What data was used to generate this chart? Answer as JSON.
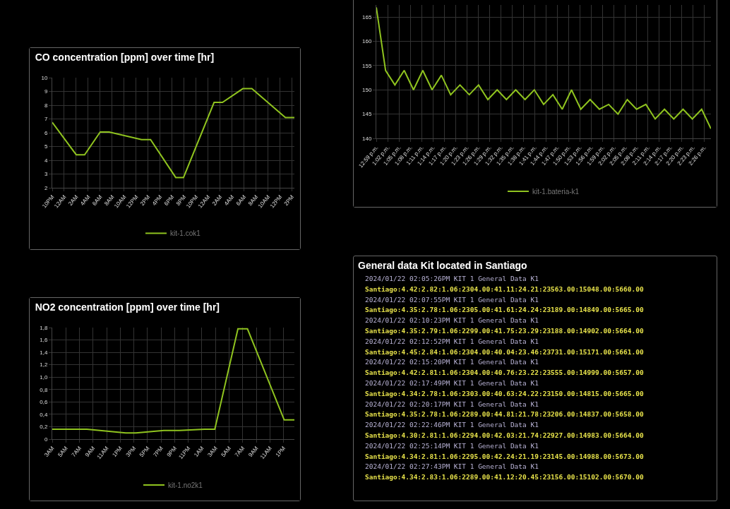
{
  "chart_data": [
    {
      "type": "line",
      "title": "CO concentration [ppm] over time [hr]",
      "x": [
        "2024-01-20T22:00",
        "2024-01-21T02:00",
        "2024-01-21T03:24",
        "2024-01-21T06:00",
        "2024-01-21T07:30",
        "2024-01-21T12:54",
        "2024-01-21T14:24",
        "2024-01-21T18:36",
        "2024-01-21T19:54",
        "2024-01-22T01:00",
        "2024-01-22T02:24",
        "2024-01-22T05:48",
        "2024-01-22T07:18",
        "2024-01-22T12:54",
        "2024-01-22T14:24"
      ],
      "series": [
        {
          "name": "kit-1.cok1",
          "color": "#8fc31f",
          "values": [
            6.75,
            4.4,
            4.4,
            6.05,
            6.05,
            5.5,
            5.5,
            2.75,
            2.75,
            8.2,
            8.2,
            9.2,
            9.2,
            7.1,
            7.1
          ]
        }
      ],
      "xlim": [
        "2024-01-20T22:00",
        "2024-01-22T14:24"
      ],
      "xticks": [
        {
          "value": "2024-01-20T22:00",
          "label": "10PM"
        },
        {
          "value": "2024-01-21T00:00",
          "label": "12AM"
        },
        {
          "value": "2024-01-21T02:00",
          "label": "2AM"
        },
        {
          "value": "2024-01-21T04:00",
          "label": "4AM"
        },
        {
          "value": "2024-01-21T06:00",
          "label": "6AM"
        },
        {
          "value": "2024-01-21T08:00",
          "label": "8AM"
        },
        {
          "value": "2024-01-21T10:00",
          "label": "10AM"
        },
        {
          "value": "2024-01-21T12:00",
          "label": "12PM"
        },
        {
          "value": "2024-01-21T14:00",
          "label": "2PM"
        },
        {
          "value": "2024-01-21T16:00",
          "label": "4PM"
        },
        {
          "value": "2024-01-21T18:00",
          "label": "6PM"
        },
        {
          "value": "2024-01-21T20:00",
          "label": "8PM"
        },
        {
          "value": "2024-01-21T22:00",
          "label": "10PM"
        },
        {
          "value": "2024-01-22T00:00",
          "label": "12AM"
        },
        {
          "value": "2024-01-22T02:00",
          "label": "2AM"
        },
        {
          "value": "2024-01-22T04:00",
          "label": "4AM"
        },
        {
          "value": "2024-01-22T06:00",
          "label": "6AM"
        },
        {
          "value": "2024-01-22T08:00",
          "label": "8AM"
        },
        {
          "value": "2024-01-22T10:00",
          "label": "10AM"
        },
        {
          "value": "2024-01-22T12:00",
          "label": "12PM"
        },
        {
          "value": "2024-01-22T14:00",
          "label": "2PM"
        }
      ],
      "ylim": [
        2,
        10
      ],
      "yticks": [
        2,
        3,
        4,
        5,
        6,
        7,
        8,
        9,
        10
      ],
      "grid": true,
      "legend": "bottom",
      "marker": "none"
    },
    {
      "type": "line",
      "x": [
        12.9833,
        13.0244,
        13.0656,
        13.1067,
        13.1478,
        13.1889,
        13.23,
        13.2711,
        13.3122,
        13.3533,
        13.3944,
        13.4356,
        13.4767,
        13.5178,
        13.5589,
        13.6,
        13.6411,
        13.6822,
        13.7233,
        13.7644,
        13.8056,
        13.8467,
        13.8878,
        13.9289,
        13.97,
        14.0111,
        14.0522,
        14.0933,
        14.1344,
        14.1756,
        14.2167,
        14.2578,
        14.2989,
        14.34,
        14.3811,
        14.4222,
        14.4633
      ],
      "series": [
        {
          "name": "kit-1.bateria-k1",
          "color": "#8fc31f",
          "values": [
            167,
            154,
            151,
            154,
            150,
            154,
            150,
            153,
            149,
            151,
            149,
            151,
            148,
            150,
            148,
            150,
            148,
            150,
            147,
            149,
            146,
            150,
            146,
            148,
            146,
            147,
            145,
            148,
            146,
            147,
            144,
            146,
            144,
            146,
            144,
            146,
            142
          ]
        }
      ],
      "xlim": [
        12.9833,
        14.4633
      ],
      "xticks": [
        {
          "value": 12.9833,
          "label": "12:59 p.m."
        },
        {
          "value": 13.0333,
          "label": "1:02 p.m."
        },
        {
          "value": 13.0833,
          "label": "1:05 p.m."
        },
        {
          "value": 13.1333,
          "label": "1:08 p.m."
        },
        {
          "value": 13.1833,
          "label": "1:11 p.m."
        },
        {
          "value": 13.2333,
          "label": "1:14 p.m."
        },
        {
          "value": 13.2833,
          "label": "1:17 p.m."
        },
        {
          "value": 13.3333,
          "label": "1:20 p.m."
        },
        {
          "value": 13.3833,
          "label": "1:23 p.m."
        },
        {
          "value": 13.4333,
          "label": "1:26 p.m."
        },
        {
          "value": 13.4833,
          "label": "1:29 p.m."
        },
        {
          "value": 13.5333,
          "label": "1:32 p.m."
        },
        {
          "value": 13.5833,
          "label": "1:35 p.m."
        },
        {
          "value": 13.6333,
          "label": "1:38 p.m."
        },
        {
          "value": 13.6833,
          "label": "1:41 p.m."
        },
        {
          "value": 13.7333,
          "label": "1:44 p.m."
        },
        {
          "value": 13.7833,
          "label": "1:47 p.m."
        },
        {
          "value": 13.8333,
          "label": "1:50 p.m."
        },
        {
          "value": 13.8833,
          "label": "1:53 p.m."
        },
        {
          "value": 13.9333,
          "label": "1:56 p.m."
        },
        {
          "value": 13.9833,
          "label": "1:59 p.m."
        },
        {
          "value": 14.0333,
          "label": "2:02 p.m."
        },
        {
          "value": 14.0833,
          "label": "2:05 p.m."
        },
        {
          "value": 14.1333,
          "label": "2:08 p.m."
        },
        {
          "value": 14.1833,
          "label": "2:11 p.m."
        },
        {
          "value": 14.2333,
          "label": "2:14 p.m."
        },
        {
          "value": 14.2833,
          "label": "2:17 p.m."
        },
        {
          "value": 14.3333,
          "label": "2:20 p.m."
        },
        {
          "value": 14.3833,
          "label": "2:23 p.m."
        },
        {
          "value": 14.4333,
          "label": "2:26 p.m."
        }
      ],
      "ylim": [
        140,
        167.5
      ],
      "yticks": [
        140,
        145,
        150,
        155,
        160,
        165
      ],
      "grid": true,
      "legend": "bottom",
      "marker": "none"
    },
    {
      "type": "line",
      "title": "NO2 concentration [ppm] over time [hr]",
      "x": [
        "2024-01-21T03:00",
        "2024-01-21T08:06",
        "2024-01-21T13:48",
        "2024-01-21T15:18",
        "2024-01-21T19:24",
        "2024-01-21T21:42",
        "2024-01-22T01:24",
        "2024-01-22T02:54",
        "2024-01-22T06:18",
        "2024-01-22T07:42",
        "2024-01-22T13:06",
        "2024-01-22T14:36"
      ],
      "series": [
        {
          "name": "kit-1.no2k1",
          "color": "#8fc31f",
          "values": [
            0.16,
            0.16,
            0.1,
            0.1,
            0.14,
            0.14,
            0.16,
            0.16,
            1.78,
            1.78,
            0.31,
            0.31
          ]
        }
      ],
      "xlim": [
        "2024-01-21T03:00",
        "2024-01-22T14:36"
      ],
      "xticks": [
        {
          "value": "2024-01-21T03:00",
          "label": "3AM"
        },
        {
          "value": "2024-01-21T05:00",
          "label": "5AM"
        },
        {
          "value": "2024-01-21T07:00",
          "label": "7AM"
        },
        {
          "value": "2024-01-21T09:00",
          "label": "9AM"
        },
        {
          "value": "2024-01-21T11:00",
          "label": "11AM"
        },
        {
          "value": "2024-01-21T13:00",
          "label": "1PM"
        },
        {
          "value": "2024-01-21T15:00",
          "label": "3PM"
        },
        {
          "value": "2024-01-21T17:00",
          "label": "5PM"
        },
        {
          "value": "2024-01-21T19:00",
          "label": "7PM"
        },
        {
          "value": "2024-01-21T21:00",
          "label": "9PM"
        },
        {
          "value": "2024-01-21T23:00",
          "label": "11PM"
        },
        {
          "value": "2024-01-22T01:00",
          "label": "1AM"
        },
        {
          "value": "2024-01-22T03:00",
          "label": "3AM"
        },
        {
          "value": "2024-01-22T05:00",
          "label": "5AM"
        },
        {
          "value": "2024-01-22T07:00",
          "label": "7AM"
        },
        {
          "value": "2024-01-22T09:00",
          "label": "9AM"
        },
        {
          "value": "2024-01-22T11:00",
          "label": "11AM"
        },
        {
          "value": "2024-01-22T13:00",
          "label": "1PM"
        }
      ],
      "ylim": [
        0,
        1.8
      ],
      "yticks": [
        0,
        {
          "value": 0.2,
          "label": "0,2"
        },
        {
          "value": 0.4,
          "label": "0,4"
        },
        {
          "value": 0.6,
          "label": "0,6"
        },
        {
          "value": 0.8,
          "label": "0,8"
        },
        {
          "value": 1,
          "label": "1,0"
        },
        {
          "value": 1.2,
          "label": "1,2"
        },
        {
          "value": 1.4,
          "label": "1,4"
        },
        {
          "value": 1.6,
          "label": "1,6"
        },
        {
          "value": 1.8,
          "label": "1,8"
        }
      ],
      "grid": true,
      "legend": "bottom",
      "marker": "none"
    },
    {
      "type": "other",
      "title": "General data Kit located in Santiago",
      "annotations": [
        "2024/01/22 02:05:26PM  KIT 1  General Data K1",
        "Santiago:4.42:2.82:1.06:2304.00:41.11:24.21:23563.00:15048.00:5660.00",
        "2024/01/22 02:07:55PM  KIT 1  General Data K1",
        "Santiago:4.35:2.78:1.06:2305.00:41.61:24.24:23189.00:14849.00:5665.00",
        "2024/01/22 02:10:23PM  KIT 1  General Data K1",
        "Santiago:4.35:2.79:1.06:2299.00:41.75:23.29:23188.00:14902.00:5664.00",
        "2024/01/22 02:12:52PM  KIT 1  General Data K1",
        "Santiago:4.45:2.84:1.06:2304.00:40.04:23.46:23731.00:15171.00:5661.00",
        "2024/01/22 02:15:20PM  KIT 1  General Data K1",
        "Santiago:4.42:2.81:1.06:2304.00:40.76:23.22:23555.00:14999.00:5657.00",
        "2024/01/22 02:17:49PM  KIT 1  General Data K1",
        "Santiago:4.34:2.78:1.06:2303.00:40.63:24.22:23150.00:14815.00:5665.00",
        "2024/01/22 02:20:17PM  KIT 1  General Data K1",
        "Santiago:4.35:2.78:1.06:2289.00:44.81:21.78:23206.00:14837.00:5658.00",
        "2024/01/22 02:22:46PM  KIT 1  General Data K1",
        "Santiago:4.30:2.81:1.06:2294.00:42.03:21.74:22927.00:14983.00:5664.00",
        "2024/01/22 02:25:14PM  KIT 1  General Data K1",
        "Santiago:4.34:2.81:1.06:2295.00:42.24:21.19:23145.00:14988.00:5673.00",
        "2024/01/22 02:27:43PM  KIT 1  General Data K1",
        "Santiago:4.34:2.83:1.06:2289.00:41.12:20.45:23156.00:15102.00:5670.00"
      ]
    }
  ]
}
